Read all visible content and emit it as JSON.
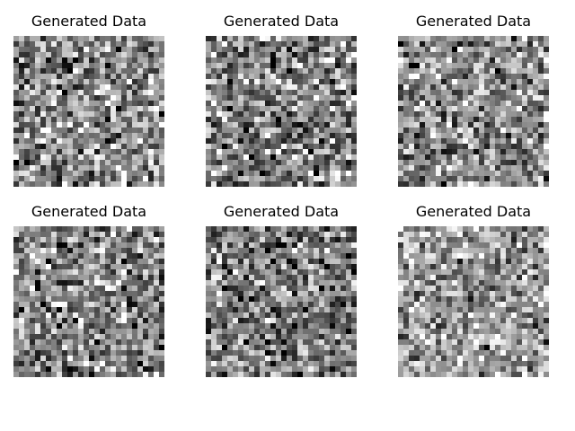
{
  "figure": {
    "panels": [
      {
        "title": "Generated Data"
      },
      {
        "title": "Generated Data"
      },
      {
        "title": "Generated Data"
      },
      {
        "title": "Generated Data"
      },
      {
        "title": "Generated Data"
      },
      {
        "title": "Generated Data"
      }
    ]
  },
  "chart_data": [
    {
      "type": "heatmap",
      "title": "Generated Data",
      "colormap": "gray",
      "grid_size": [
        28,
        28
      ],
      "seed": 11,
      "mean": 0.55,
      "spread": 0.45
    },
    {
      "type": "heatmap",
      "title": "Generated Data",
      "colormap": "gray",
      "grid_size": [
        28,
        28
      ],
      "seed": 23,
      "mean": 0.52,
      "spread": 0.48
    },
    {
      "type": "heatmap",
      "title": "Generated Data",
      "colormap": "gray",
      "grid_size": [
        28,
        28
      ],
      "seed": 37,
      "mean": 0.55,
      "spread": 0.45
    },
    {
      "type": "heatmap",
      "title": "Generated Data",
      "colormap": "gray",
      "grid_size": [
        28,
        28
      ],
      "seed": 41,
      "mean": 0.52,
      "spread": 0.48
    },
    {
      "type": "heatmap",
      "title": "Generated Data",
      "colormap": "gray",
      "grid_size": [
        28,
        28
      ],
      "seed": 59,
      "mean": 0.48,
      "spread": 0.45
    },
    {
      "type": "heatmap",
      "title": "Generated Data",
      "colormap": "gray",
      "grid_size": [
        28,
        28
      ],
      "seed": 73,
      "mean": 0.6,
      "spread": 0.4
    }
  ]
}
